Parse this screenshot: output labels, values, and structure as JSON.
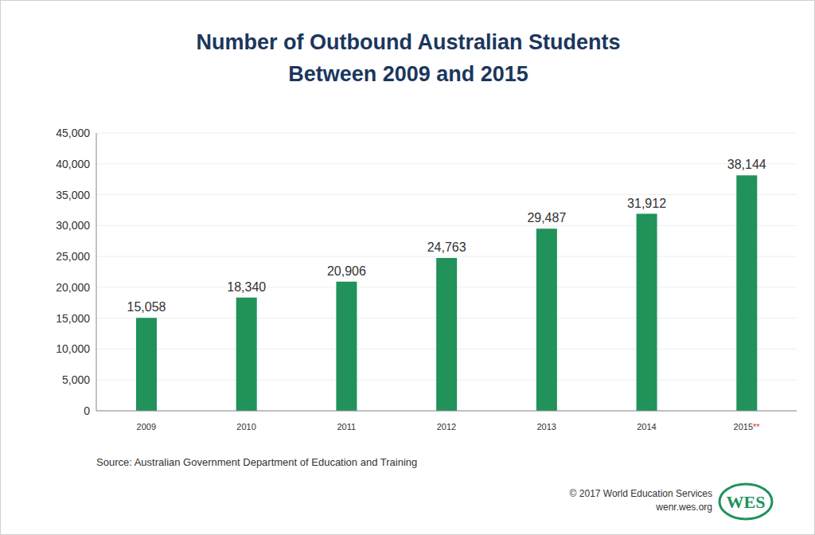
{
  "chart_data": {
    "type": "bar",
    "title": "Number of Outbound Australian Students\nBetween 2009 and 2015",
    "categories": [
      "2009",
      "2010",
      "2011",
      "2012",
      "2013",
      "2014",
      "2015**"
    ],
    "values": [
      15058,
      18340,
      20906,
      24763,
      29487,
      31912,
      38144
    ],
    "value_labels": [
      "15,058",
      "18,340",
      "20,906",
      "24,763",
      "29,487",
      "31,912",
      "38,144"
    ],
    "color": "#20925a",
    "ylim": [
      0,
      45000
    ],
    "yticks": [
      0,
      {
        "value": 5000,
        "label": "5,000"
      },
      {
        "value": 10000,
        "label": "10,000"
      },
      {
        "value": 15000,
        "label": "15,000"
      },
      {
        "value": 20000,
        "label": "20,000"
      },
      {
        "value": 25000,
        "label": "25,000"
      },
      {
        "value": 30000,
        "label": "30,000"
      },
      {
        "value": 35000,
        "label": "35,000"
      },
      {
        "value": 40000,
        "label": "40,000"
      },
      {
        "value": 45000,
        "label": "45,000"
      }
    ],
    "grid": true,
    "data_labels": true,
    "source": "Source: Australian Government Department of Education and Training",
    "credits": [
      "© 2017 World Education Services",
      "wenr.wes.org"
    ],
    "logo": "WES"
  }
}
